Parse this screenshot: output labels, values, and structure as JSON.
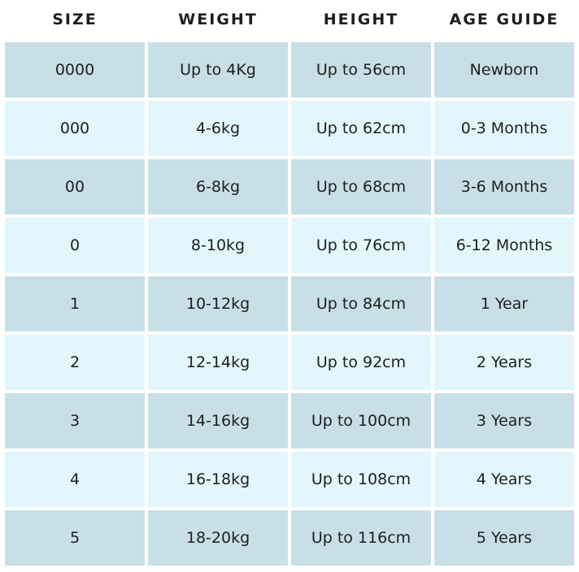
{
  "header": [
    "SIZE",
    "WEIGHT",
    "HEIGHT",
    "AGE GUIDE"
  ],
  "colors": {
    "row_dark": "#c8dfe7",
    "row_light": "#e3f6fd"
  },
  "rows": [
    [
      "0000",
      "Up to 4Kg",
      "Up to 56cm",
      "Newborn"
    ],
    [
      "000",
      "4-6kg",
      "Up to 62cm",
      "0-3 Months"
    ],
    [
      "00",
      "6-8kg",
      "Up to 68cm",
      "3-6 Months"
    ],
    [
      "0",
      "8-10kg",
      "Up to 76cm",
      "6-12 Months"
    ],
    [
      "1",
      "10-12kg",
      "Up to 84cm",
      "1 Year"
    ],
    [
      "2",
      "12-14kg",
      "Up to 92cm",
      "2 Years"
    ],
    [
      "3",
      "14-16kg",
      "Up to 100cm",
      "3 Years"
    ],
    [
      "4",
      "16-18kg",
      "Up to 108cm",
      "4 Years"
    ],
    [
      "5",
      "18-20kg",
      "Up to 116cm",
      "5 Years"
    ]
  ]
}
